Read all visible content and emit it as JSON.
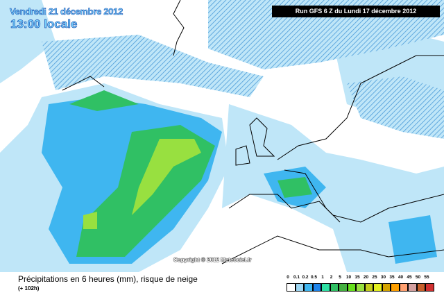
{
  "header": {
    "date": "Vendredi 21 décembre 2012",
    "time": "13:00 locale",
    "run": "Run GFS 6 Z du Lundi 17 décembre 2012"
  },
  "map": {
    "copyright": "Copyright © 2012 Meteociel.fr",
    "ocean_color": "#ffffff",
    "coast_color": "#000000"
  },
  "footer": {
    "title": "Précipitations en 6 heures (mm), risque de neige",
    "subtitle": "(+ 102h)"
  },
  "legend": {
    "unit": "mm",
    "items": [
      {
        "label": "0",
        "color": "#ffffff"
      },
      {
        "label": "0.1",
        "color": "#9fd8f4"
      },
      {
        "label": "0.2",
        "color": "#3fb6f0"
      },
      {
        "label": "0.5",
        "color": "#1e84ea"
      },
      {
        "label": "1",
        "color": "#2ee0a4"
      },
      {
        "label": "2",
        "color": "#30c064"
      },
      {
        "label": "5",
        "color": "#44b040"
      },
      {
        "label": "10",
        "color": "#66e01c"
      },
      {
        "label": "15",
        "color": "#98e040"
      },
      {
        "label": "20",
        "color": "#c4cc1c"
      },
      {
        "label": "25",
        "color": "#e4f020"
      },
      {
        "label": "30",
        "color": "#d4a400"
      },
      {
        "label": "35",
        "color": "#ffa000"
      },
      {
        "label": "40",
        "color": "#ffa070"
      },
      {
        "label": "45",
        "color": "#d4a0a0"
      },
      {
        "label": "50",
        "color": "#c8602c"
      },
      {
        "label": "55",
        "color": "#d03030"
      }
    ]
  }
}
